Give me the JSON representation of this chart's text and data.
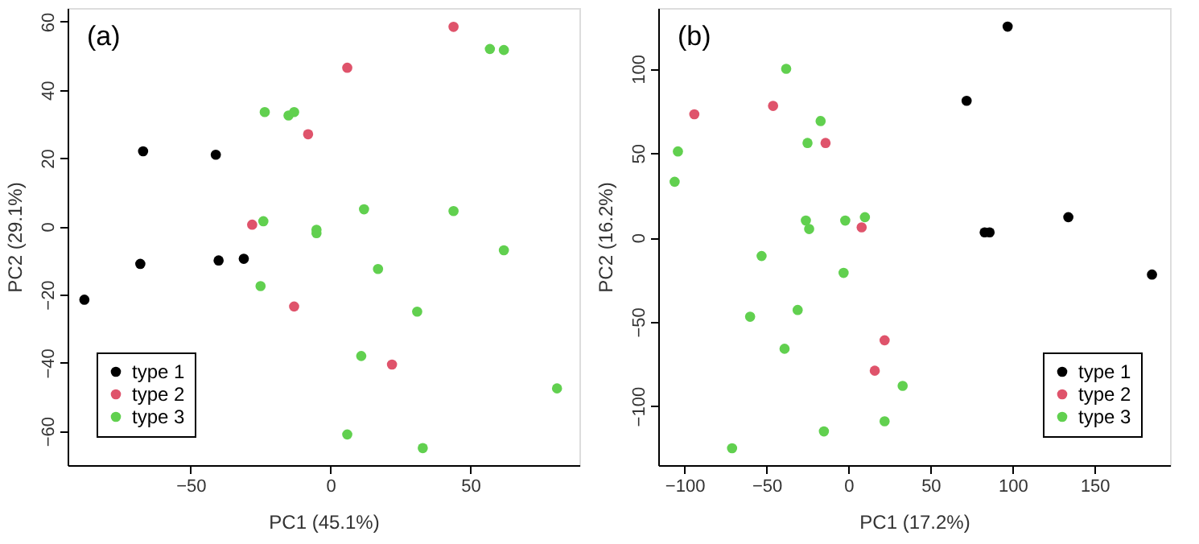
{
  "chart_data": [
    {
      "type": "scatter",
      "xlabel": "PC1 (45.1%)",
      "ylabel": "PC2 (29.1%)",
      "annotations": [
        "(a)"
      ],
      "xlim": [
        -94,
        89
      ],
      "ylim": [
        -70,
        64
      ],
      "xticks": [
        -50,
        0,
        50
      ],
      "yticks": [
        -60,
        -40,
        -20,
        0,
        20,
        40,
        60
      ],
      "grid": false,
      "legend": "bottom left",
      "marker": "circle",
      "series": [
        {
          "name": "type 1",
          "color": "#000000",
          "x": [
            -88,
            -67,
            -68,
            -41,
            -40,
            -31
          ],
          "values": [
            -21.5,
            22,
            -11,
            21,
            -10,
            -9.5
          ]
        },
        {
          "name": "type 2",
          "color": "#df536b",
          "x": [
            6,
            44,
            -8,
            -28,
            -13,
            22
          ],
          "values": [
            46.5,
            58.5,
            27,
            0.5,
            -23.5,
            -40.5
          ]
        },
        {
          "name": "type 3",
          "color": "#61d04f",
          "x": [
            -23.5,
            -15,
            -13,
            57,
            62,
            -24,
            -5,
            -5,
            12,
            44,
            62,
            17,
            -25,
            31,
            11,
            81,
            6,
            33
          ],
          "values": [
            33.5,
            32.5,
            33.5,
            52,
            51.7,
            1.5,
            -1,
            -2,
            5,
            4.5,
            -7,
            -12.5,
            -17.5,
            -25,
            -38,
            -47.5,
            -61,
            -65
          ]
        }
      ]
    },
    {
      "type": "scatter",
      "xlabel": "PC1 (17.2%)",
      "ylabel": "PC2 (16.2%)",
      "annotations": [
        "(b)"
      ],
      "xlim": [
        -116,
        196
      ],
      "ylim": [
        -135,
        136
      ],
      "xticks": [
        -100,
        -50,
        0,
        50,
        100,
        150
      ],
      "yticks": [
        -100,
        -50,
        0,
        50,
        100
      ],
      "grid": false,
      "legend": "bottom right",
      "marker": "circle",
      "series": [
        {
          "name": "type 1",
          "color": "#000000",
          "x": [
            97,
            72,
            83,
            86,
            134,
            185
          ],
          "values": [
            125,
            81,
            3,
            3,
            12,
            -22
          ]
        },
        {
          "name": "type 2",
          "color": "#df536b",
          "x": [
            -94,
            -46,
            -14,
            8,
            22,
            16
          ],
          "values": [
            73,
            78,
            56,
            6,
            -61,
            -79
          ]
        },
        {
          "name": "type 3",
          "color": "#61d04f",
          "x": [
            -104,
            -106,
            -38,
            -17,
            -25,
            -26,
            -24,
            -2,
            10,
            -53,
            -3,
            -31,
            -60,
            -39,
            33,
            22,
            -15,
            -71
          ],
          "values": [
            51,
            33,
            100,
            69,
            56,
            10,
            5,
            10,
            12,
            -11,
            -21,
            -43,
            -47,
            -66,
            -88,
            -109,
            -115,
            -125
          ]
        }
      ]
    }
  ]
}
